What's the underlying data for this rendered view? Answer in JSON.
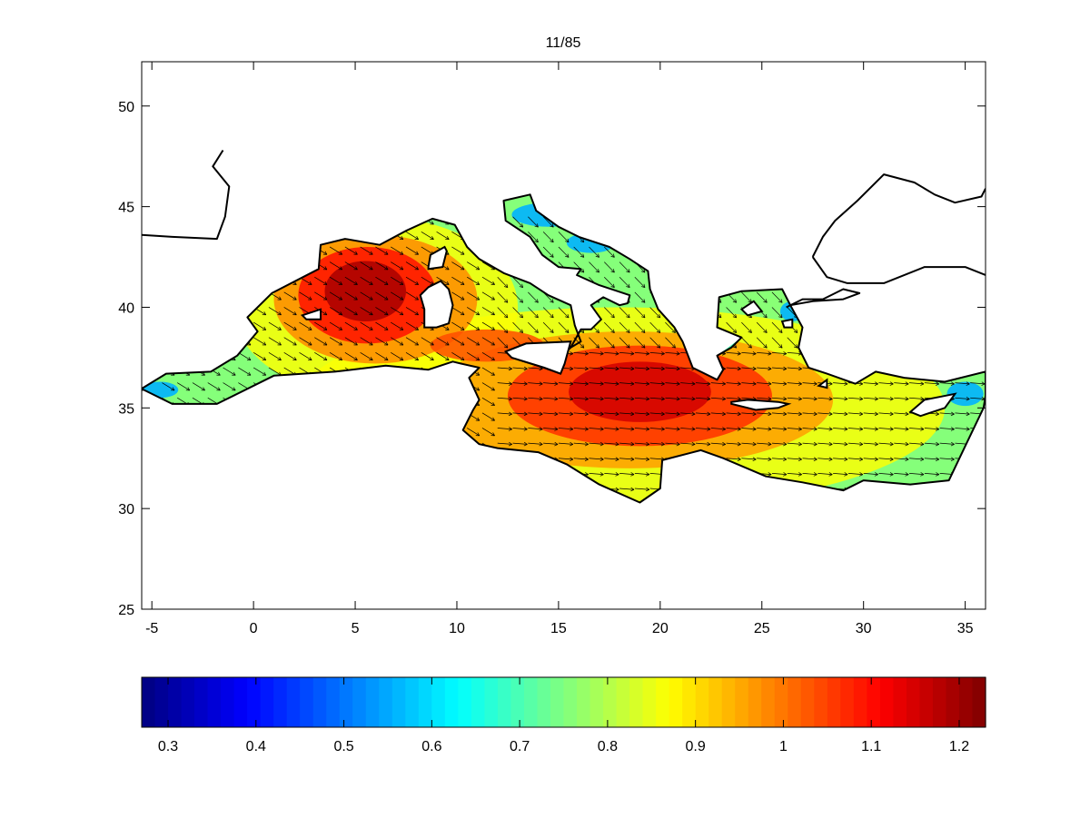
{
  "figure": {
    "title": "11/85"
  },
  "map": {
    "xlim": [
      -5.5,
      36
    ],
    "ylim": [
      25,
      52.2
    ],
    "x_ticks": [
      -5,
      0,
      5,
      10,
      15,
      20,
      25,
      30,
      35
    ],
    "y_ticks": [
      25,
      30,
      35,
      40,
      45,
      50
    ],
    "field": "wave-height-like scalar with direction arrows",
    "maxima": [
      {
        "lon": 5.5,
        "lat": 40.8,
        "value": 1.23
      },
      {
        "lon": 19.0,
        "lat": 35.8,
        "value": 1.12
      }
    ]
  },
  "colorbar": {
    "range": [
      0.27,
      1.23
    ],
    "ticks": [
      0.3,
      0.4,
      0.5,
      0.6,
      0.7,
      0.8,
      0.9,
      1,
      1.1,
      1.2
    ],
    "tick_labels": [
      "0.3",
      "0.4",
      "0.5",
      "0.6",
      "0.7",
      "0.8",
      "0.9",
      "1",
      "1.1",
      "1.2"
    ],
    "colormap": "jet"
  },
  "colors": {
    "low": "#00008f",
    "mid": "#00ffff",
    "high": "#800000",
    "coast": "#000000"
  }
}
